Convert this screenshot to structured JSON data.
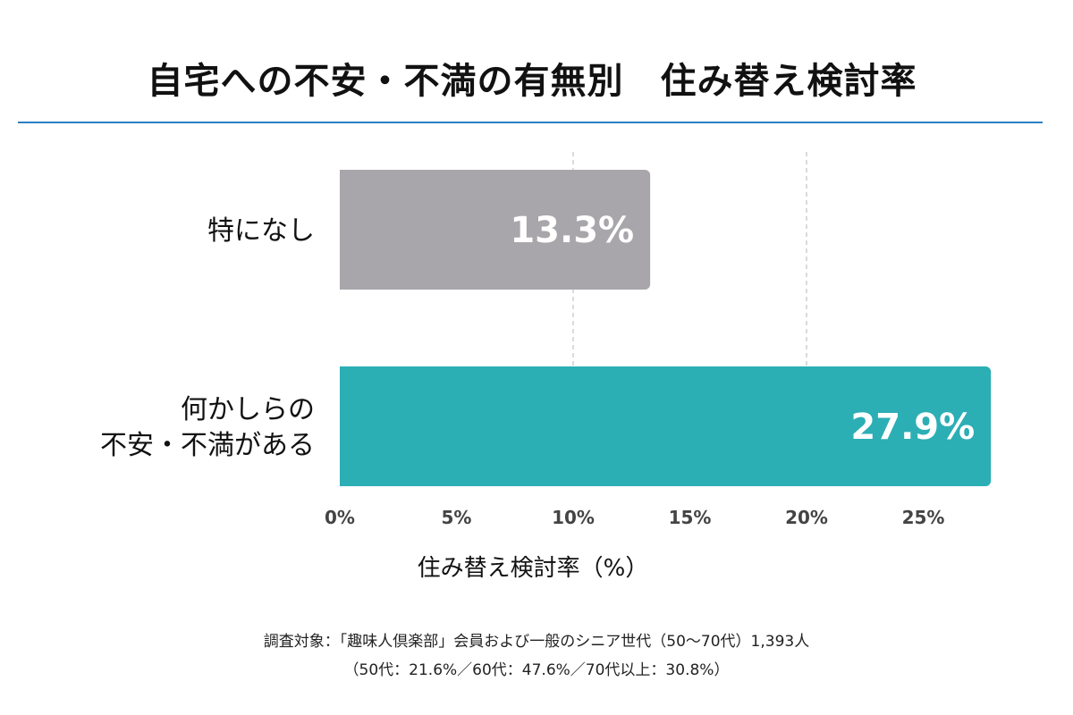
{
  "title": "自宅への不安・不満の有無別　住み替え検討率",
  "colors": {
    "rule": "#2b7fc5",
    "bar_none": "#a8a6aa",
    "bar_some": "#2caeb5",
    "grid": "#cfcfcf",
    "tick": "#444444"
  },
  "chart_data": {
    "type": "bar",
    "orientation": "horizontal",
    "categories": [
      [
        "特になし"
      ],
      [
        "何かしらの",
        "不安・不満がある"
      ]
    ],
    "values": [
      13.3,
      27.9
    ],
    "value_labels": [
      "13.3%",
      "27.9%"
    ],
    "xlim": [
      0,
      27
    ],
    "ticks": [
      0,
      5,
      10,
      15,
      20,
      25
    ],
    "tick_labels": [
      "0%",
      "5%",
      "10%",
      "15%",
      "20%",
      "25%"
    ],
    "gridlines_at": [
      10,
      20
    ],
    "xlabel": "住み替え検討率（%）",
    "ylabel": ""
  },
  "footnote": {
    "line1": "調査対象：「趣味人倶楽部」会員および一般のシニア世代（50〜70代）1,393人",
    "line2": "（50代：21.6%／60代：47.6%／70代以上：30.8%）"
  }
}
